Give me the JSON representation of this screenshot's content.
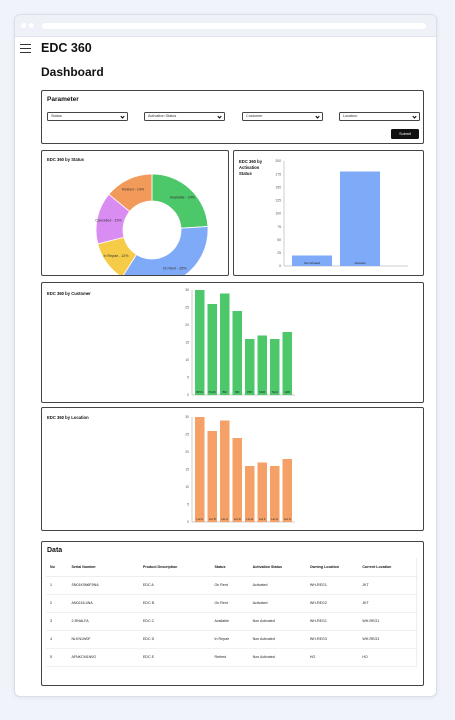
{
  "app": {
    "title": "EDC 360"
  },
  "page": {
    "title": "Dashboard"
  },
  "parameter": {
    "title": "Parameter",
    "filters": [
      {
        "label": "Status"
      },
      {
        "label": "Activation Status"
      },
      {
        "label": "Customer"
      },
      {
        "label": "Location"
      }
    ],
    "submit_label": "Submit"
  },
  "status_chart": {
    "title": "EDC 360 by Status",
    "chart_data": {
      "type": "pie",
      "labels": [
        "Available - 24%",
        "On Rent - 35%",
        "In Repair - 12%",
        "Cancelled - 15%",
        "Retired - 14%"
      ],
      "values": [
        24,
        35,
        12,
        15,
        14
      ],
      "colors": [
        "#4cc76a",
        "#7faaf7",
        "#f5cb48",
        "#d98df2",
        "#f29a5a"
      ]
    }
  },
  "activation_chart": {
    "title_lines": [
      "EDC 360 by",
      "Activation",
      "Status"
    ],
    "chart_data": {
      "type": "bar",
      "categories": [
        "Non Activated",
        "Activated"
      ],
      "values": [
        20,
        180
      ],
      "y_ticks": [
        "0",
        "25",
        "50",
        "75",
        "100",
        "125",
        "150",
        "175",
        "200"
      ],
      "ylim": [
        0,
        200
      ],
      "color": "#7faaf7"
    }
  },
  "customer_chart": {
    "title": "EDC 360 by Customer",
    "chart_data": {
      "type": "bar",
      "categories": [
        "BPJS",
        "PGAS",
        "BNI",
        "BRI",
        "PPN",
        "MDR",
        "TELK",
        "HRB"
      ],
      "values": [
        30,
        26,
        29,
        24,
        16,
        17,
        16,
        18
      ],
      "y_ticks": [
        "0",
        "5",
        "10",
        "15",
        "20",
        "25",
        "30"
      ],
      "ylim": [
        0,
        30
      ],
      "color": "#4cc76a"
    }
  },
  "location_chart": {
    "title": "EDC 360 by Location",
    "chart_data": {
      "type": "bar",
      "categories": [
        "Loc A",
        "Loc B",
        "Loc C",
        "Loc D",
        "Loc E",
        "Loc F",
        "Loc G",
        "Loc H"
      ],
      "values": [
        30,
        26,
        29,
        24,
        16,
        17,
        16,
        18
      ],
      "y_ticks": [
        "0",
        "5",
        "10",
        "15",
        "20",
        "25",
        "30"
      ],
      "ylim": [
        0,
        30
      ],
      "color": "#f5a066"
    }
  },
  "data_table": {
    "title": "Data",
    "columns": [
      "No",
      "Serial Number",
      "Product Description",
      "Status",
      "Activation Status",
      "Owning Location",
      "Current Location"
    ],
    "rows": [
      [
        "1",
        "SN01K0N6F5NA",
        "EDC A",
        "On Rent",
        "Activated",
        "WH-REG1",
        "JKT"
      ],
      [
        "2",
        "AN0218-4NA",
        "EDC B",
        "On Rent",
        "Activated",
        "WH-REG2",
        "JKT"
      ],
      [
        "3",
        "2-RNALFA",
        "EDC C",
        "Available",
        "Non Activated",
        "WH-REG1",
        "WH-REG1"
      ],
      [
        "4",
        "NLKN1W0F",
        "EDC D",
        "In Repair",
        "Non Activated",
        "WH-REG3",
        "WH-REG3"
      ],
      [
        "5",
        "AFNKCM1N0G",
        "EDC E",
        "Retired",
        "Non Activated",
        "HO",
        "HO"
      ]
    ]
  }
}
